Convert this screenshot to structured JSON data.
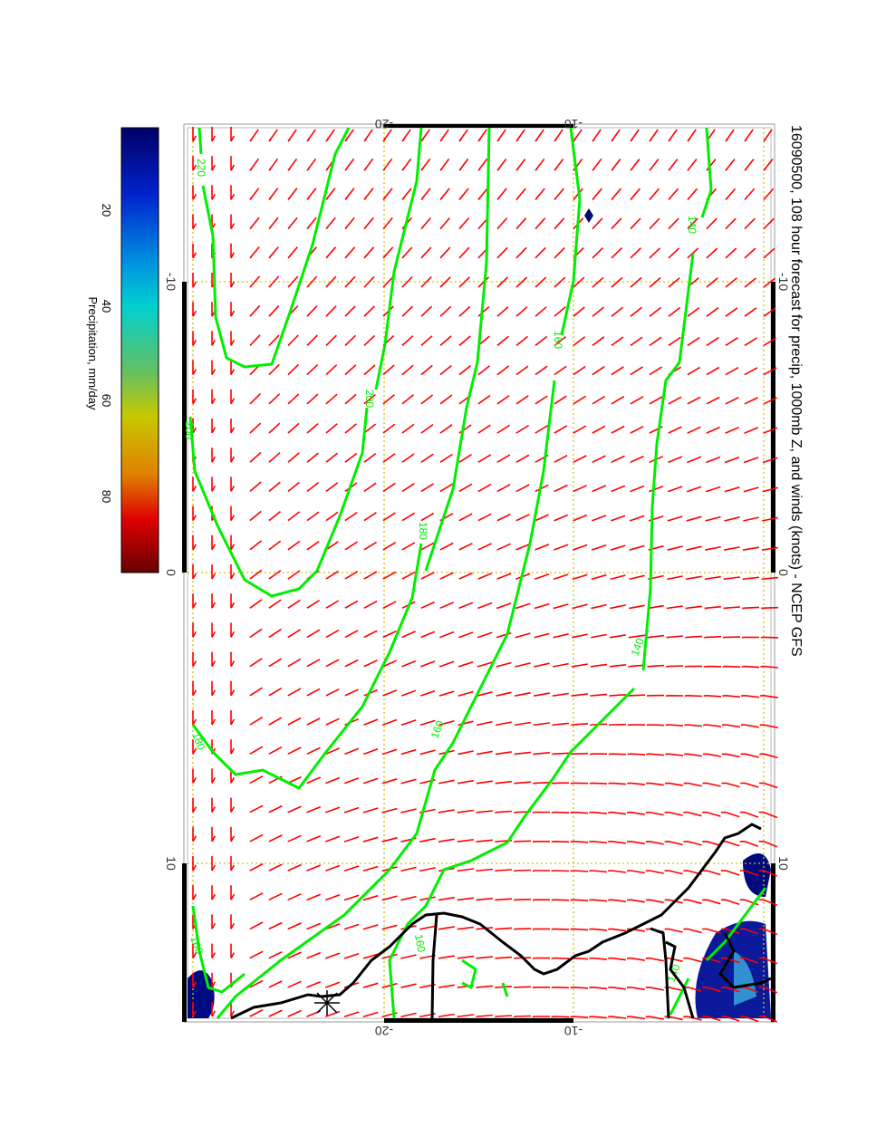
{
  "title": "16090500, 108 hour forecast for precip, 1000mb Z, and winds (knots) - NCEP GFS",
  "colorbar": {
    "label": "Precipitation, mm/day",
    "ticks": [
      "20",
      "40",
      "60",
      "80"
    ],
    "colors": [
      "#000066",
      "#0022cc",
      "#00a0e0",
      "#00d0d0",
      "#66c060",
      "#c8c800",
      "#e08000",
      "#e00000",
      "#660000"
    ]
  },
  "axes": {
    "top": [
      "-20",
      "-10"
    ],
    "bottom": [
      "-20",
      "-10"
    ],
    "left": [
      "-10",
      "0",
      "10"
    ],
    "right": [
      "-10",
      "0",
      "10"
    ]
  },
  "contour_labels": [
    "220",
    "200",
    "200",
    "180",
    "160",
    "140",
    "160",
    "180",
    "160",
    "140",
    "160",
    "140",
    "100"
  ],
  "colors": {
    "contour": "#00ee00",
    "wind": "#ff0000",
    "coast": "#000000",
    "grid": "#d4c000"
  }
}
